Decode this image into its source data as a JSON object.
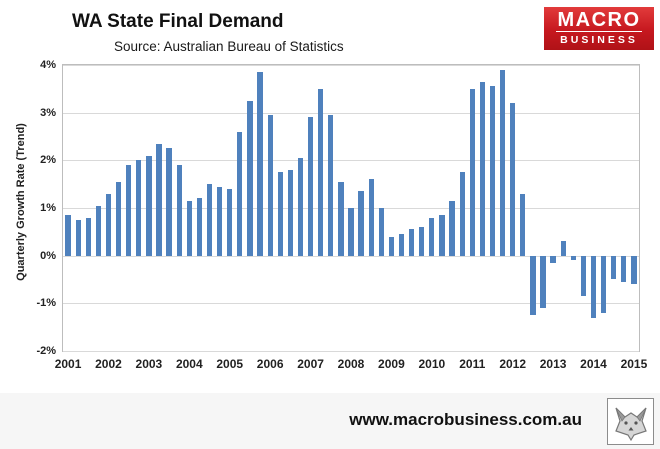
{
  "header": {
    "title": "WA State Final Demand",
    "subtitle": "Source: Australian Bureau of Statistics",
    "logo": {
      "line1": "MACRO",
      "line2": "BUSINESS",
      "bg_color": "#c6181f",
      "text_color": "#ffffff"
    }
  },
  "chart_data": {
    "type": "bar",
    "title": "WA State Final Demand",
    "subtitle": "Source: Australian Bureau of Statistics",
    "xlabel": "",
    "ylabel": "Quarterly Growth Rate (Trend)",
    "ylim": [
      -2,
      4
    ],
    "ytick_labels": [
      "4%",
      "3%",
      "2%",
      "1%",
      "0%",
      "-1%",
      "-2%"
    ],
    "grid": true,
    "legend": "none",
    "bar_color": "#4f81bd",
    "x_tick_labels": [
      "2001",
      "2002",
      "2003",
      "2004",
      "2005",
      "2006",
      "2007",
      "2008",
      "2009",
      "2010",
      "2011",
      "2012",
      "2013",
      "2014",
      "2015"
    ],
    "categories": [
      "2001 Q1",
      "2001 Q2",
      "2001 Q3",
      "2001 Q4",
      "2002 Q1",
      "2002 Q2",
      "2002 Q3",
      "2002 Q4",
      "2003 Q1",
      "2003 Q2",
      "2003 Q3",
      "2003 Q4",
      "2004 Q1",
      "2004 Q2",
      "2004 Q3",
      "2004 Q4",
      "2005 Q1",
      "2005 Q2",
      "2005 Q3",
      "2005 Q4",
      "2006 Q1",
      "2006 Q2",
      "2006 Q3",
      "2006 Q4",
      "2007 Q1",
      "2007 Q2",
      "2007 Q3",
      "2007 Q4",
      "2008 Q1",
      "2008 Q2",
      "2008 Q3",
      "2008 Q4",
      "2009 Q1",
      "2009 Q2",
      "2009 Q3",
      "2009 Q4",
      "2010 Q1",
      "2010 Q2",
      "2010 Q3",
      "2010 Q4",
      "2011 Q1",
      "2011 Q2",
      "2011 Q3",
      "2011 Q4",
      "2012 Q1",
      "2012 Q2",
      "2012 Q3",
      "2012 Q4",
      "2013 Q1",
      "2013 Q2",
      "2013 Q3",
      "2013 Q4",
      "2014 Q1",
      "2014 Q2",
      "2014 Q3",
      "2014 Q4",
      "2015 Q1"
    ],
    "values": [
      0.85,
      0.75,
      0.8,
      1.05,
      1.3,
      1.55,
      1.9,
      2.0,
      2.1,
      2.35,
      2.25,
      1.9,
      1.15,
      1.2,
      1.5,
      1.45,
      1.4,
      2.6,
      3.25,
      3.85,
      2.95,
      1.75,
      1.8,
      2.05,
      2.9,
      3.5,
      2.95,
      1.55,
      1.0,
      1.35,
      1.6,
      1.0,
      0.4,
      0.45,
      0.55,
      0.6,
      0.8,
      0.85,
      1.15,
      1.75,
      3.5,
      3.65,
      3.55,
      3.9,
      3.2,
      1.3,
      -1.25,
      -1.1,
      -0.15,
      0.3,
      -0.1,
      -0.85,
      -1.3,
      -1.2,
      -0.5,
      -0.55,
      -0.6
    ]
  },
  "footer": {
    "website": "www.macrobusiness.com.au"
  }
}
